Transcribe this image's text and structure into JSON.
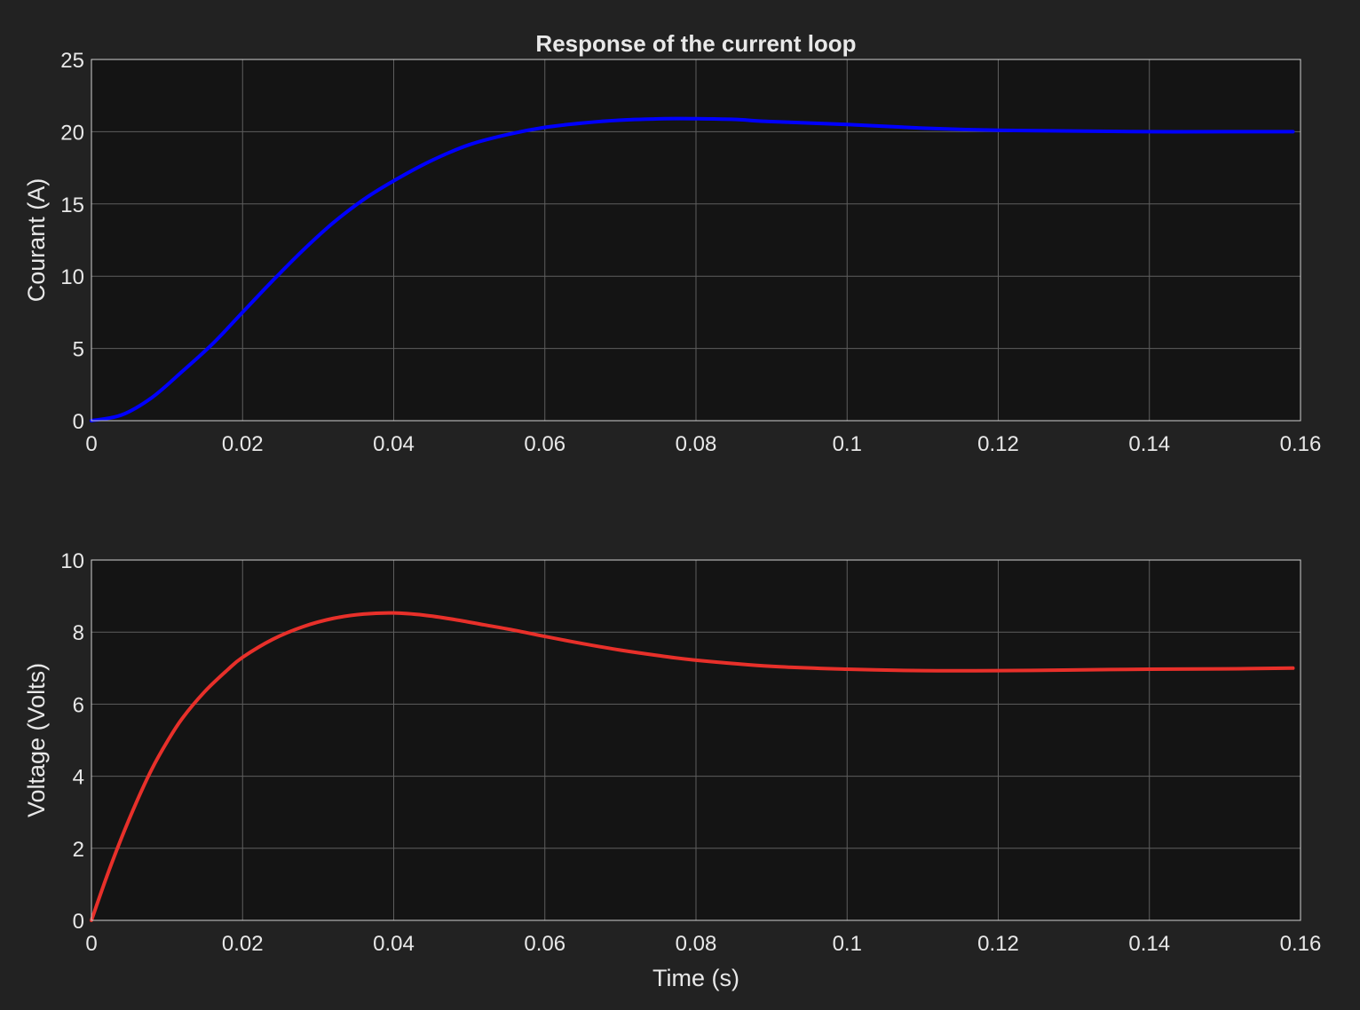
{
  "figure": {
    "background": "#222222",
    "axes_background": "#141414"
  },
  "chart_data": [
    {
      "type": "line",
      "title": "Response of the current loop",
      "xlabel": "",
      "ylabel": "Courant (A)",
      "xlim": [
        0,
        0.16
      ],
      "ylim": [
        0,
        25
      ],
      "x_ticks": [
        0,
        0.02,
        0.04,
        0.06,
        0.08,
        0.1,
        0.12,
        0.14,
        0.16
      ],
      "x_tick_labels": [
        "0",
        "0.02",
        "0.04",
        "0.06",
        "0.08",
        "0.1",
        "0.12",
        "0.14",
        "0.16"
      ],
      "y_ticks": [
        0,
        5,
        10,
        15,
        20,
        25
      ],
      "y_tick_labels": [
        "0",
        "5",
        "10",
        "15",
        "20",
        "25"
      ],
      "grid": true,
      "series": [
        {
          "color": "#0000ff",
          "x": [
            0,
            0.004,
            0.008,
            0.012,
            0.016,
            0.02,
            0.024,
            0.028,
            0.032,
            0.036,
            0.04,
            0.045,
            0.05,
            0.055,
            0.06,
            0.065,
            0.07,
            0.076,
            0.08,
            0.085,
            0.09,
            0.1,
            0.11,
            0.12,
            0.13,
            0.14,
            0.15,
            0.159
          ],
          "y": [
            0,
            0.4,
            1.6,
            3.4,
            5.3,
            7.5,
            9.7,
            11.8,
            13.7,
            15.3,
            16.6,
            18.0,
            19.1,
            19.8,
            20.3,
            20.6,
            20.8,
            20.9,
            20.9,
            20.85,
            20.7,
            20.5,
            20.25,
            20.1,
            20.05,
            20.0,
            20.0,
            20.0
          ]
        }
      ]
    },
    {
      "type": "line",
      "title": "",
      "xlabel": "Time (s)",
      "ylabel": "Voltage (Volts)",
      "xlim": [
        0,
        0.16
      ],
      "ylim": [
        0,
        10
      ],
      "x_ticks": [
        0,
        0.02,
        0.04,
        0.06,
        0.08,
        0.1,
        0.12,
        0.14,
        0.16
      ],
      "x_tick_labels": [
        "0",
        "0.02",
        "0.04",
        "0.06",
        "0.08",
        "0.1",
        "0.12",
        "0.14",
        "0.16"
      ],
      "y_ticks": [
        0,
        2,
        4,
        6,
        8,
        10
      ],
      "y_tick_labels": [
        "0",
        "2",
        "4",
        "6",
        "8",
        "10"
      ],
      "grid": true,
      "series": [
        {
          "color": "#e8302a",
          "x": [
            0,
            0.002,
            0.004,
            0.006,
            0.008,
            0.01,
            0.012,
            0.015,
            0.018,
            0.02,
            0.024,
            0.028,
            0.032,
            0.036,
            0.04,
            0.044,
            0.048,
            0.052,
            0.056,
            0.06,
            0.065,
            0.07,
            0.075,
            0.08,
            0.09,
            0.1,
            0.11,
            0.12,
            0.13,
            0.14,
            0.15,
            0.159
          ],
          "y": [
            0,
            1.2,
            2.3,
            3.3,
            4.2,
            4.95,
            5.6,
            6.35,
            6.95,
            7.3,
            7.8,
            8.15,
            8.38,
            8.5,
            8.53,
            8.47,
            8.35,
            8.2,
            8.05,
            7.88,
            7.68,
            7.5,
            7.35,
            7.22,
            7.05,
            6.97,
            6.93,
            6.93,
            6.95,
            6.97,
            6.98,
            7.0
          ]
        }
      ]
    }
  ]
}
